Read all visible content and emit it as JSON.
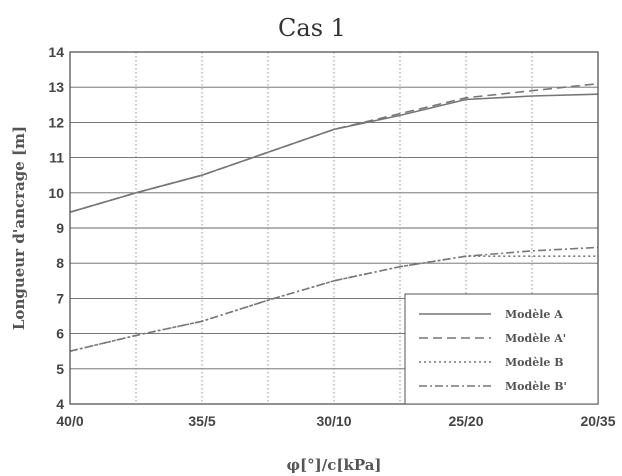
{
  "chart_data": {
    "type": "line",
    "title": "Cas 1",
    "xlabel": "φ[°]/c[kPa]",
    "ylabel": "Longueur d'ancrage [m]",
    "categories": [
      "40/0",
      "35/5",
      "30/10",
      "25/20",
      "20/35"
    ],
    "ylim": [
      4,
      14
    ],
    "yticks": [
      4,
      5,
      6,
      7,
      8,
      9,
      10,
      11,
      12,
      13,
      14
    ],
    "grid": true,
    "legend_position": "bottom-right",
    "series": [
      {
        "name": "Modèle A",
        "style": "solid",
        "color": "#777777",
        "points": [
          [
            0,
            9.45
          ],
          [
            0.5,
            10.0
          ],
          [
            1.0,
            10.5
          ],
          [
            1.5,
            11.15
          ],
          [
            2.0,
            11.8
          ],
          [
            2.5,
            12.2
          ],
          [
            3.0,
            12.65
          ],
          [
            3.5,
            12.75
          ],
          [
            4.0,
            12.8
          ]
        ]
      },
      {
        "name": "Modèle A'",
        "style": "dashed",
        "color": "#777777",
        "points": [
          [
            0,
            9.45
          ],
          [
            0.5,
            10.0
          ],
          [
            1.0,
            10.5
          ],
          [
            1.5,
            11.15
          ],
          [
            2.0,
            11.8
          ],
          [
            2.5,
            12.25
          ],
          [
            3.0,
            12.7
          ],
          [
            3.5,
            12.9
          ],
          [
            4.0,
            13.1
          ]
        ]
      },
      {
        "name": "Modèle B",
        "style": "dotted",
        "color": "#777777",
        "points": [
          [
            0,
            5.5
          ],
          [
            0.5,
            5.95
          ],
          [
            1.0,
            6.35
          ],
          [
            1.5,
            6.95
          ],
          [
            2.0,
            7.5
          ],
          [
            2.5,
            7.9
          ],
          [
            3.0,
            8.2
          ],
          [
            3.5,
            8.2
          ],
          [
            4.0,
            8.2
          ]
        ]
      },
      {
        "name": "Modèle B'",
        "style": "dashdot",
        "color": "#777777",
        "points": [
          [
            0,
            5.5
          ],
          [
            0.5,
            5.95
          ],
          [
            1.0,
            6.35
          ],
          [
            1.5,
            6.95
          ],
          [
            2.0,
            7.5
          ],
          [
            2.5,
            7.9
          ],
          [
            3.0,
            8.2
          ],
          [
            3.5,
            8.35
          ],
          [
            4.0,
            8.45
          ]
        ]
      }
    ]
  }
}
